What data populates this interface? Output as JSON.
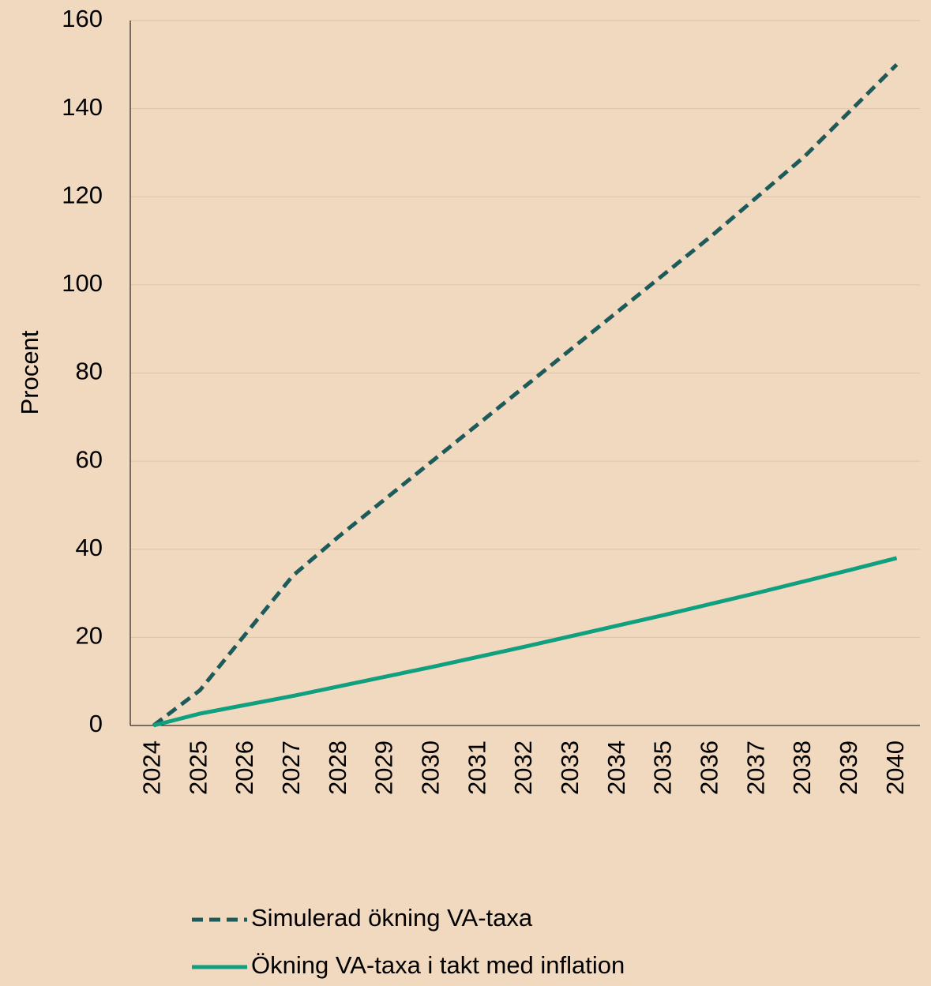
{
  "chart_data": {
    "type": "line",
    "ylabel": "Procent",
    "categories": [
      "2024",
      "2025",
      "2026",
      "2027",
      "2028",
      "2029",
      "2030",
      "2031",
      "2032",
      "2033",
      "2034",
      "2035",
      "2036",
      "2037",
      "2038",
      "2039",
      "2040"
    ],
    "series": [
      {
        "name": "Simulerad ökning VA-taxa",
        "color": "#1d5b5b",
        "dashed": true,
        "values": [
          0,
          8,
          21,
          34,
          43,
          51.5,
          60,
          68.5,
          77,
          85.5,
          94,
          102.5,
          111,
          120,
          129,
          139.5,
          150
        ]
      },
      {
        "name": "Ökning VA-taxa i takt med inflation",
        "color": "#10a080",
        "dashed": false,
        "values": [
          0,
          2.7,
          4.7,
          6.7,
          8.9,
          11.1,
          13.3,
          15.6,
          17.9,
          20.3,
          22.7,
          25.1,
          27.6,
          30.1,
          32.7,
          35.3,
          38
        ]
      }
    ],
    "ylim": [
      0,
      160
    ],
    "yticks": [
      0,
      20,
      40,
      60,
      80,
      100,
      120,
      140,
      160
    ],
    "grid": true
  }
}
